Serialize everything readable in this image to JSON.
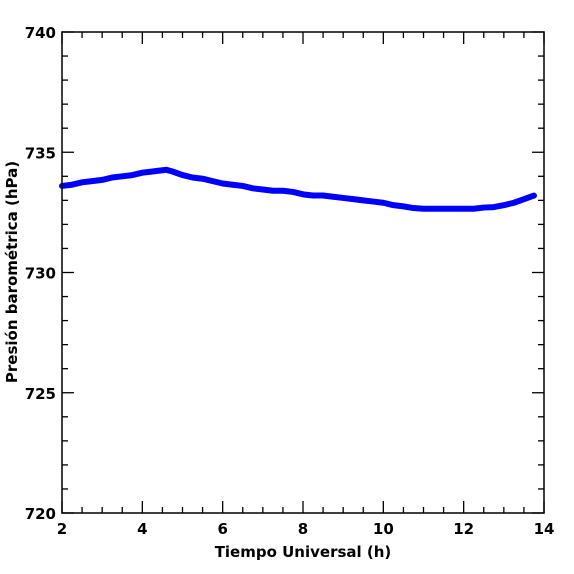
{
  "chart_data": {
    "type": "line",
    "title": "",
    "xlabel": "Tiempo Universal (h)",
    "ylabel": "Presión barométrica (hPa)",
    "xlim": [
      2,
      14
    ],
    "ylim": [
      720,
      740
    ],
    "x_ticks": [
      2,
      4,
      6,
      8,
      10,
      12,
      14
    ],
    "x_tick_labels": [
      "2",
      "4",
      "6",
      "8",
      "10",
      "12",
      "14"
    ],
    "y_ticks": [
      720,
      725,
      730,
      735,
      740
    ],
    "y_tick_labels": [
      "720",
      "725",
      "730",
      "735",
      "740"
    ],
    "grid": false,
    "series": [
      {
        "color": "#0000ff",
        "x": [
          2.0,
          2.25,
          2.5,
          2.75,
          3.0,
          3.25,
          3.5,
          3.75,
          4.0,
          4.25,
          4.5,
          4.6,
          4.75,
          5.0,
          5.25,
          5.5,
          5.75,
          6.0,
          6.25,
          6.5,
          6.75,
          7.0,
          7.25,
          7.5,
          7.75,
          8.0,
          8.25,
          8.5,
          8.75,
          9.0,
          9.25,
          9.5,
          9.75,
          10.0,
          10.25,
          10.5,
          10.75,
          11.0,
          11.25,
          11.5,
          11.75,
          12.0,
          12.25,
          12.5,
          12.75,
          13.0,
          13.25,
          13.5,
          13.75
        ],
        "y": [
          733.6,
          733.65,
          733.75,
          733.8,
          733.85,
          733.95,
          734.0,
          734.05,
          734.15,
          734.2,
          734.25,
          734.27,
          734.2,
          734.05,
          733.95,
          733.9,
          733.8,
          733.7,
          733.65,
          733.6,
          733.5,
          733.45,
          733.4,
          733.4,
          733.35,
          733.25,
          733.2,
          733.2,
          733.15,
          733.1,
          733.05,
          733.0,
          732.95,
          732.9,
          732.8,
          732.75,
          732.68,
          732.65,
          732.65,
          732.65,
          732.65,
          732.65,
          732.65,
          732.7,
          732.72,
          732.8,
          732.9,
          733.05,
          733.2
        ]
      }
    ]
  }
}
